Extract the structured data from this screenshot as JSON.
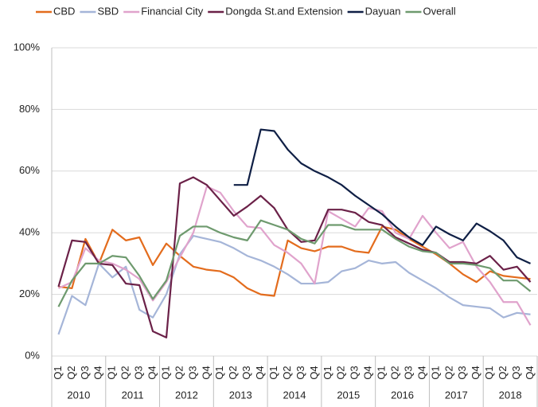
{
  "chart_data": {
    "type": "line",
    "categories": [
      "Q1",
      "Q2",
      "Q3",
      "Q4",
      "Q1",
      "Q2",
      "Q3",
      "Q4",
      "Q1",
      "Q2",
      "Q3",
      "Q4",
      "Q1",
      "Q2",
      "Q3",
      "Q4",
      "Q1",
      "Q2",
      "Q3",
      "Q4",
      "Q1",
      "Q2",
      "Q3",
      "Q4",
      "Q1",
      "Q2",
      "Q3",
      "Q4",
      "Q1",
      "Q2",
      "Q3",
      "Q4",
      "Q1",
      "Q2",
      "Q3",
      "Q4"
    ],
    "year_groups": [
      "2010",
      "2011",
      "2012",
      "2013",
      "2014",
      "2015",
      "2016",
      "2017",
      "2018"
    ],
    "ylim": [
      0,
      100
    ],
    "yticks": [
      {
        "value": 0,
        "label": "0%"
      },
      {
        "value": 20,
        "label": "20%"
      },
      {
        "value": 40,
        "label": "40%"
      },
      {
        "value": 60,
        "label": "60%"
      },
      {
        "value": 80,
        "label": "80%"
      },
      {
        "value": 100,
        "label": "100%"
      }
    ],
    "grid": true,
    "legend": "top",
    "series": [
      {
        "name": "CBD",
        "color": "#e36c1d",
        "values": [
          22.5,
          22,
          38,
          30,
          41,
          37.5,
          38.5,
          29.5,
          36.5,
          32.5,
          29,
          28,
          27.5,
          25.5,
          22,
          20,
          19.5,
          37.5,
          35,
          34,
          35.5,
          35.5,
          34,
          33.5,
          42,
          41,
          38,
          35.5,
          33,
          30,
          26.5,
          24,
          27.5,
          26,
          25.5,
          25
        ]
      },
      {
        "name": "SBD",
        "color": "#a5b5d8",
        "values": [
          7,
          19.5,
          16.5,
          30,
          25.5,
          29,
          15,
          12.5,
          20,
          33,
          39,
          38,
          37,
          35,
          32.5,
          31,
          29,
          26.5,
          23.5,
          23.5,
          24,
          27.5,
          28.5,
          31,
          30,
          30.5,
          27,
          24.5,
          22,
          19,
          16.5,
          16,
          15.5,
          12.5,
          14,
          13.5
        ]
      },
      {
        "name": "Financial City",
        "color": "#e0a3cc",
        "values": [
          22,
          24,
          35,
          31,
          30,
          28,
          25,
          18,
          24,
          32,
          40,
          55,
          53,
          47,
          42,
          41.5,
          36,
          33.5,
          30,
          23.5,
          47,
          44.5,
          42,
          48,
          47,
          40,
          38,
          45.5,
          40,
          35,
          37,
          29,
          24,
          17.5,
          17.5,
          10
        ]
      },
      {
        "name": "Dongda St.and Extension",
        "color": "#6b2148",
        "values": [
          22.5,
          37.5,
          37,
          30,
          29.5,
          23.5,
          23,
          8,
          6,
          56,
          58,
          55.5,
          50.5,
          45.5,
          48.5,
          52,
          48,
          41,
          37,
          37.5,
          47.5,
          47.5,
          46.5,
          43.5,
          42.5,
          38.5,
          36.5,
          34.5,
          33.5,
          30.5,
          30.5,
          30,
          32.5,
          28,
          29,
          24
        ]
      },
      {
        "name": "Dayuan",
        "color": "#0f1f45",
        "values": [
          null,
          null,
          null,
          null,
          null,
          null,
          null,
          null,
          null,
          null,
          null,
          null,
          null,
          55.5,
          55.5,
          73.5,
          73,
          67,
          62.5,
          60,
          58,
          55.5,
          52,
          49,
          46,
          42,
          38.5,
          36,
          42,
          39.5,
          37.5,
          43,
          40.5,
          37.5,
          32,
          30
        ]
      },
      {
        "name": "Overall",
        "color": "#6e9a6e",
        "values": [
          16,
          24.5,
          30,
          30,
          32.5,
          32,
          26,
          18.5,
          24.5,
          39,
          42,
          42,
          40,
          38.5,
          37.5,
          44,
          42.5,
          41,
          38,
          36.5,
          42.5,
          42.5,
          41,
          41,
          41,
          38,
          35.5,
          34,
          33.5,
          30,
          30,
          29.5,
          28.5,
          24.5,
          24.5,
          21
        ]
      }
    ]
  }
}
